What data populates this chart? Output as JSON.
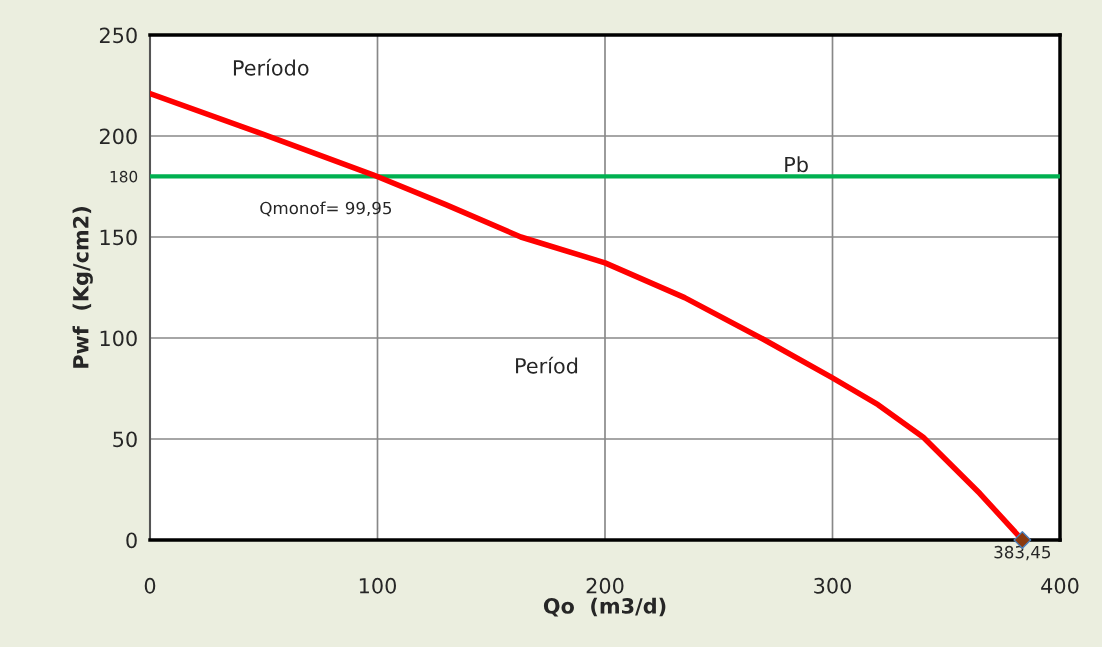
{
  "chart_data": {
    "type": "line",
    "xlabel": "Qo  (m3/d)",
    "ylabel": "Pwf  (Kg/cm2)",
    "series": [
      {
        "color": "#ff0000",
        "x": [
          0,
          46.9,
          98,
          130,
          163,
          189,
          200,
          235,
          269.6,
          299.6,
          320,
          339.9,
          364.8,
          383.45
        ],
        "values": [
          221,
          202,
          180.8,
          166,
          150,
          141,
          137.2,
          120,
          99.4,
          80.5,
          67,
          50.9,
          23,
          0
        ]
      },
      {
        "type": "scatter",
        "color": "#8b3a0f",
        "marker": "diamond",
        "x": [
          383.45
        ],
        "values": [
          0
        ]
      }
    ],
    "xlim": [
      0,
      400
    ],
    "xticks": [
      0,
      100,
      200,
      300,
      400
    ],
    "ylim": [
      0,
      250
    ],
    "yticks": [
      0,
      50,
      100,
      150,
      180,
      200,
      250
    ],
    "grid": true,
    "ref_lines": [
      {
        "axis": "y",
        "value": 180,
        "label": "Pb",
        "color": "#00b050"
      }
    ],
    "annotations": [
      "Período",
      "Períod",
      {
        "text": "Qmonof= 99,95",
        "x": 99.95,
        "y": 180
      },
      {
        "text": "383,45",
        "x": 383.45,
        "y": 0
      }
    ]
  }
}
